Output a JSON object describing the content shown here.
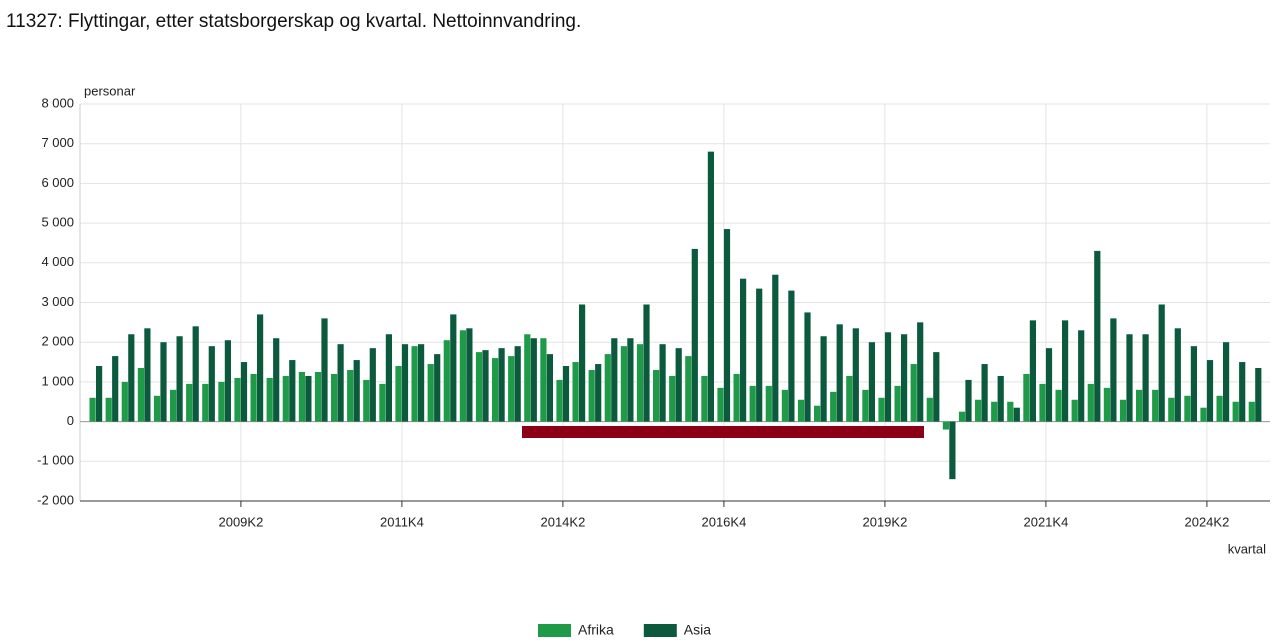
{
  "chart_data": {
    "type": "bar",
    "title": "11327: Flyttingar, etter statsborgerskap og kvartal. Nettoinnvandring.",
    "y_label": "personar",
    "x_label": "kvartal",
    "categories": [
      null,
      null,
      null,
      null,
      null,
      null,
      null,
      null,
      null,
      "2009K2",
      null,
      null,
      null,
      null,
      null,
      null,
      null,
      null,
      null,
      "2011K4",
      null,
      null,
      null,
      null,
      null,
      null,
      null,
      null,
      null,
      "2014K2",
      null,
      null,
      null,
      null,
      null,
      null,
      null,
      null,
      null,
      "2016K4",
      null,
      null,
      null,
      null,
      null,
      null,
      null,
      null,
      null,
      "2019K2",
      null,
      null,
      null,
      null,
      null,
      null,
      null,
      null,
      null,
      "2021K4",
      null,
      null,
      null,
      null,
      null,
      null,
      null,
      null,
      null,
      "2024K2",
      null,
      null,
      null
    ],
    "series": [
      {
        "name": "Afrika",
        "color": "#1f9a48",
        "values": [
          600,
          600,
          1000,
          1350,
          650,
          800,
          950,
          950,
          1000,
          1100,
          1200,
          1100,
          1150,
          1250,
          1250,
          1200,
          1300,
          1050,
          950,
          1400,
          1900,
          1450,
          2050,
          2300,
          1750,
          1600,
          1650,
          2200,
          2100,
          1050,
          1500,
          1300,
          1700,
          1900,
          1950,
          1300,
          1150,
          1650,
          1150,
          850,
          1200,
          900,
          900,
          800,
          550,
          400,
          750,
          1150,
          800,
          600,
          900,
          1450,
          600,
          -200,
          250,
          550,
          500,
          500,
          1200,
          950,
          800,
          550,
          950,
          850,
          550,
          800,
          800,
          600,
          650,
          350,
          650,
          500,
          500
        ]
      },
      {
        "name": "Asia",
        "color": "#0b5a3d",
        "values": [
          1400,
          1650,
          2200,
          2350,
          2000,
          2150,
          2400,
          1900,
          2050,
          1500,
          2700,
          2100,
          1550,
          1150,
          2600,
          1950,
          1550,
          1850,
          2200,
          1950,
          1950,
          1700,
          2700,
          2350,
          1800,
          1850,
          1900,
          2100,
          1700,
          1400,
          2950,
          1450,
          2100,
          2100,
          2950,
          1950,
          1850,
          4350,
          6800,
          4850,
          3600,
          3350,
          3700,
          3300,
          2750,
          2150,
          2450,
          2350,
          2000,
          2250,
          2200,
          2500,
          1750,
          -1450,
          1050,
          1450,
          1150,
          350,
          2550,
          1850,
          2550,
          2300,
          4300,
          2600,
          2200,
          2200,
          2950,
          2350,
          1900,
          1550,
          2000,
          1500,
          1350
        ]
      }
    ],
    "ylim": [
      -2000,
      8000
    ],
    "yticks": [
      {
        "value": -2000,
        "label": "-2 000"
      },
      {
        "value": -1000,
        "label": "-1 000"
      },
      0,
      {
        "value": 1000,
        "label": "1 000"
      },
      {
        "value": 2000,
        "label": "2 000"
      },
      {
        "value": 3000,
        "label": "3 000"
      },
      {
        "value": 4000,
        "label": "4 000"
      },
      {
        "value": 5000,
        "label": "5 000"
      },
      {
        "value": 6000,
        "label": "6 000"
      },
      {
        "value": 7000,
        "label": "7 000"
      },
      {
        "value": 8000,
        "label": "8 000"
      }
    ],
    "grid": true,
    "legend": "bottom"
  }
}
